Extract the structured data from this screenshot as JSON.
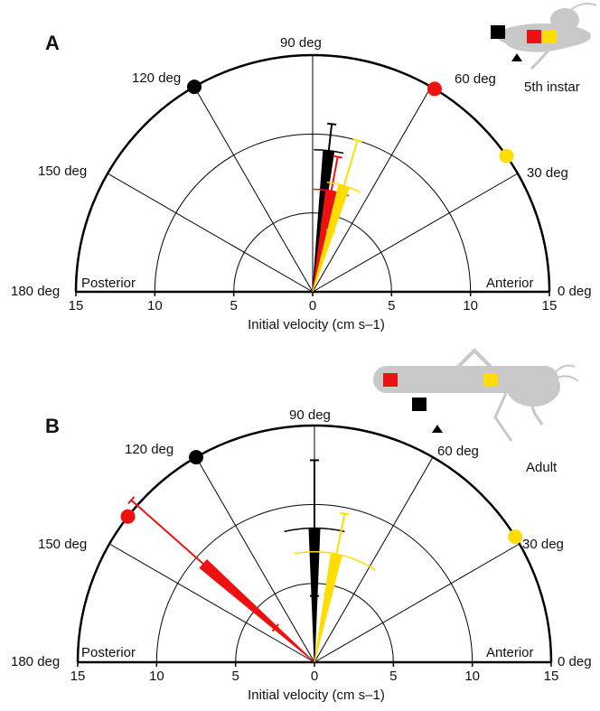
{
  "panels": [
    {
      "letter": "A",
      "stage_label": "5th instar",
      "xlabel": "Initial velocity (cm s–1)",
      "side_left": "Posterior",
      "side_right": "Anterior",
      "tick_labels": [
        "15",
        "10",
        "5",
        "0",
        "5",
        "10",
        "15"
      ],
      "angle_labels": [
        "0 deg",
        "30 deg",
        "60 deg",
        "90 deg",
        "120 deg",
        "150 deg",
        "180 deg"
      ]
    },
    {
      "letter": "B",
      "stage_label": "Adult",
      "xlabel": "Initial velocity (cm s–1)",
      "side_left": "Posterior",
      "side_right": "Anterior",
      "tick_labels": [
        "15",
        "10",
        "5",
        "0",
        "5",
        "10",
        "15"
      ],
      "angle_labels": [
        "0 deg",
        "30 deg",
        "60 deg",
        "90 deg",
        "120 deg",
        "150 deg",
        "180 deg"
      ]
    }
  ],
  "chart_data": [
    {
      "type": "polar-half",
      "panel": "A",
      "rlim": [
        0,
        15
      ],
      "ring_values": [
        5,
        10
      ],
      "spokes_deg": [
        30,
        60,
        90,
        120,
        150
      ],
      "colors": {
        "black": "#000000",
        "red": "#ee1111",
        "yellow": "#ffdd00"
      },
      "series": [
        {
          "color": "black",
          "angle_deg": 83.5,
          "angle_sd_deg": 6,
          "speed": 9.0,
          "speed_sd": 1.7,
          "marker_deg": 120
        },
        {
          "color": "red",
          "angle_deg": 79.5,
          "angle_sd_deg": 10,
          "speed": 6.5,
          "speed_sd": 2.2,
          "marker_deg": 59
        },
        {
          "color": "yellow",
          "angle_deg": 73.5,
          "angle_sd_deg": 9,
          "speed": 7.0,
          "speed_sd": 3.0,
          "marker_deg": 35
        }
      ]
    },
    {
      "type": "polar-half",
      "panel": "B",
      "rlim": [
        0,
        15
      ],
      "ring_values": [
        5,
        10
      ],
      "spokes_deg": [
        30,
        60,
        90,
        120,
        150
      ],
      "colors": {
        "black": "#000000",
        "red": "#ee1111",
        "yellow": "#ffdd00"
      },
      "series": [
        {
          "color": "black",
          "angle_deg": 90,
          "angle_sd_deg": 13,
          "speed": 8.5,
          "speed_sd": 4.3,
          "marker_deg": 120
        },
        {
          "color": "red",
          "angle_deg": 138.5,
          "angle_sd_deg": 0,
          "speed": 9.4,
          "speed_sd": 6.1,
          "marker_deg": 142
        },
        {
          "color": "yellow",
          "angle_deg": 78.5,
          "angle_sd_deg": 22,
          "speed": 7.0,
          "speed_sd": 2.6,
          "marker_deg": 32
        }
      ]
    }
  ]
}
